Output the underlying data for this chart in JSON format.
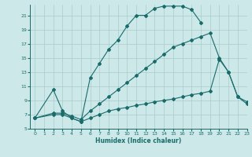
{
  "xlabel": "Humidex (Indice chaleur)",
  "bg_color": "#cce8e8",
  "grid_color": "#aacccc",
  "line_color": "#1a6b6b",
  "xlim": [
    -0.5,
    23
  ],
  "ylim": [
    5,
    22.5
  ],
  "yticks": [
    5,
    7,
    9,
    11,
    13,
    15,
    17,
    19,
    21
  ],
  "xticks": [
    0,
    1,
    2,
    3,
    4,
    5,
    6,
    7,
    8,
    9,
    10,
    11,
    12,
    13,
    14,
    15,
    16,
    17,
    18,
    19,
    20,
    21,
    22,
    23
  ],
  "curve1_x": [
    0,
    2,
    3,
    4,
    5,
    6,
    7,
    8,
    9,
    10,
    11,
    12,
    13,
    14,
    15,
    16,
    17,
    18
  ],
  "curve1_y": [
    6.5,
    10.5,
    7.5,
    6.5,
    6.0,
    12.2,
    14.2,
    16.2,
    17.5,
    19.5,
    21.0,
    21.0,
    22.0,
    22.3,
    22.3,
    22.3,
    21.8,
    20.0
  ],
  "curve2_x": [
    0,
    2,
    3,
    4,
    5,
    6,
    7,
    8,
    9,
    10,
    11,
    12,
    13,
    14,
    15,
    16,
    17,
    18,
    19,
    20,
    21,
    22,
    23
  ],
  "curve2_y": [
    6.5,
    7.2,
    7.2,
    6.8,
    6.3,
    7.5,
    8.5,
    9.5,
    10.5,
    11.5,
    12.5,
    13.5,
    14.5,
    15.5,
    16.5,
    17.0,
    17.5,
    18.0,
    18.5,
    15.0,
    13.0,
    9.5,
    8.5
  ],
  "curve3_x": [
    0,
    2,
    3,
    4,
    5,
    6,
    7,
    8,
    9,
    10,
    11,
    12,
    13,
    14,
    15,
    16,
    17,
    18,
    19,
    20,
    21,
    22,
    23
  ],
  "curve3_y": [
    6.5,
    7.0,
    7.0,
    6.5,
    6.0,
    6.5,
    7.0,
    7.5,
    7.8,
    8.0,
    8.3,
    8.5,
    8.8,
    9.0,
    9.2,
    9.5,
    9.8,
    10.0,
    10.3,
    14.8,
    13.0,
    9.5,
    8.8
  ]
}
